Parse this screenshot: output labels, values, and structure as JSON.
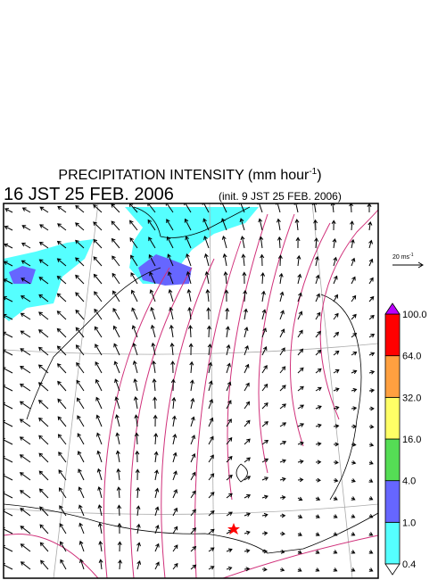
{
  "header": {
    "title": "PRECIPITATION INTENSITY (mm hour",
    "title_sup": "-1",
    "title_end": ")",
    "time": "16 JST 25 FEB. 2006",
    "init": "(init. 9 JST 25 FEB. 2006)"
  },
  "wind_reference": {
    "label": "20 ms",
    "label_sup": "-1"
  },
  "colorbar": {
    "levels": [
      {
        "value": 0.4,
        "label": "0.4"
      },
      {
        "value": 1,
        "label": "1.0"
      },
      {
        "value": 4,
        "label": "4.0"
      },
      {
        "value": 16,
        "label": "16.0"
      },
      {
        "value": 32,
        "label": "32.0"
      },
      {
        "value": 64,
        "label": "64.0"
      },
      {
        "value": 100,
        "label": "100.0"
      }
    ],
    "colors": [
      "#55ffff",
      "#6666ff",
      "#55dd55",
      "#ffff66",
      "#ffa040",
      "#ff0000"
    ],
    "over_color": "#bb00ff",
    "under_color": "#ffffff"
  }
}
